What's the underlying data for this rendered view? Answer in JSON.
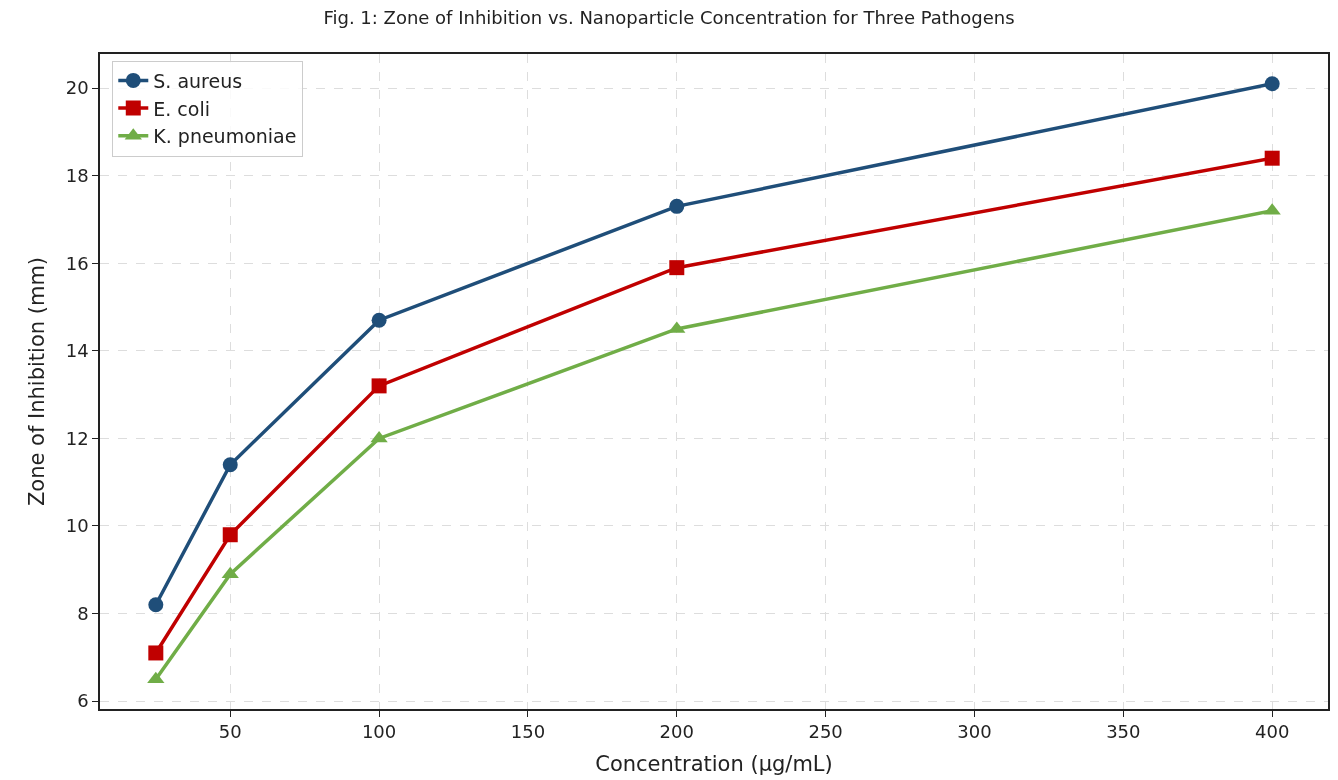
{
  "chart_data": {
    "type": "line",
    "title": "Fig. 1: Zone of Inhibition vs. Nanoparticle Concentration for Three Pathogens",
    "xlabel": "Concentration (µg/mL)",
    "ylabel": "Zone of Inhibition (mm)",
    "x": [
      25,
      50,
      100,
      200,
      400
    ],
    "series": [
      {
        "name": "S. aureus",
        "color": "#1f4e79",
        "marker": "circle",
        "values": [
          8.2,
          11.4,
          14.7,
          17.3,
          20.1
        ]
      },
      {
        "name": "E. coli",
        "color": "#c00000",
        "marker": "square",
        "values": [
          7.1,
          9.8,
          13.2,
          15.9,
          18.4
        ]
      },
      {
        "name": "K. pneumoniae",
        "color": "#70ad47",
        "marker": "triangle",
        "values": [
          6.5,
          8.9,
          12.0,
          14.5,
          17.2
        ]
      }
    ],
    "xlim": [
      6.25,
      418.75
    ],
    "xticks": [
      50,
      100,
      150,
      200,
      250,
      300,
      350,
      400
    ],
    "ylim": [
      5.82,
      20.78
    ],
    "yticks": [
      6,
      8,
      10,
      12,
      14,
      16,
      18,
      20
    ],
    "grid": true,
    "legend": "top left",
    "line_style": "solid"
  }
}
